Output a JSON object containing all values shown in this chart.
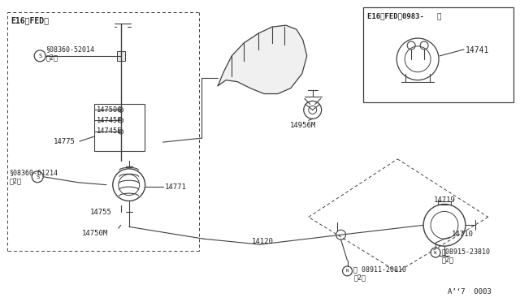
{
  "title": "",
  "background_color": "#ffffff",
  "line_color": "#404040",
  "text_color": "#202020",
  "fig_width": 6.4,
  "fig_height": 3.72,
  "dpi": 100,
  "labels": {
    "top_left_box": "E16〈FED〉",
    "top_right_box": "E16〈FED〉0983-   〉",
    "part_14741": "14741",
    "part_14956M": "14956M",
    "part_08360_52014": "§08360-52014\n（2）",
    "part_14750G": "14750G",
    "part_14745F": "14745F",
    "part_14745E": "14745E",
    "part_14775": "14775",
    "part_08360_61214": "§08360-61214\n（2）",
    "part_14771": "14771",
    "part_14755": "14755",
    "part_14750M": "14750M",
    "part_14719": "14719",
    "part_14120": "14120",
    "part_14710": "14710",
    "part_08915_23810": "Ⓦ08915-23810\n（2）",
    "part_08911_20810": "Ⓝ 08911-20810\n（2）",
    "ref_code": "A’‘7  0003"
  }
}
